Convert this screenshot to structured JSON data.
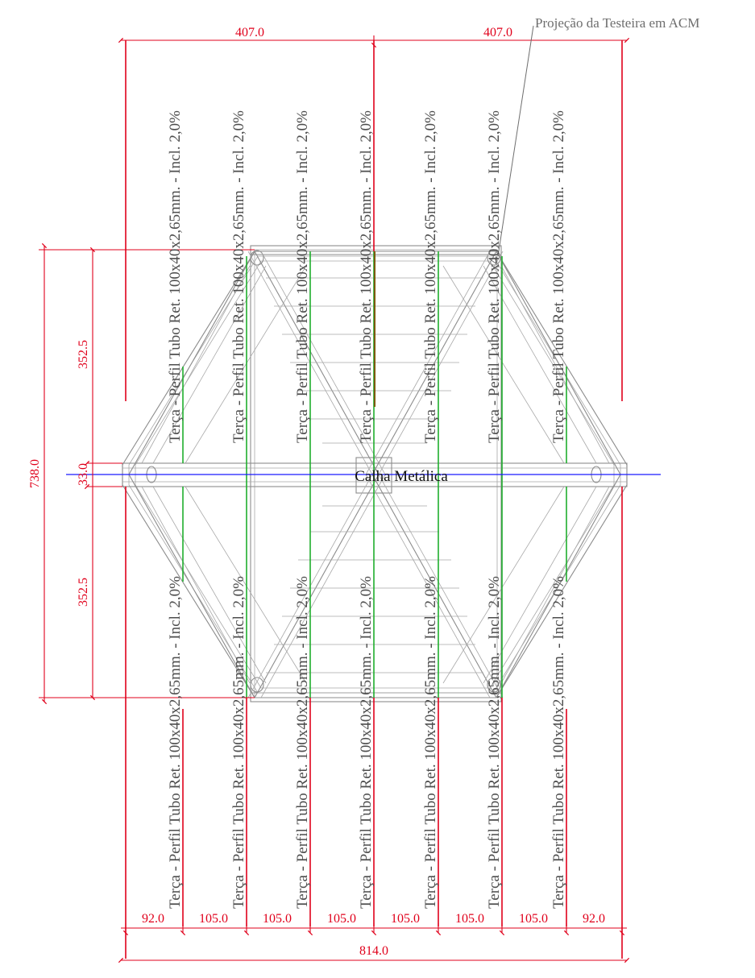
{
  "drawing": {
    "callout": "Projeção da Testeira em ACM",
    "gutter_label": "Calha Metálica",
    "purlin_label": "Terça - Perfil Tubo Ret. 100x40x2,65mm. - Incl. 2,0%",
    "purlin_label_bottom": "Terça - Perfil Tubo Ret. 100x40x2,65mm.",
    "dims_top": [
      "407.0",
      "407.0"
    ],
    "dim_total_height": "738.0",
    "dims_left": [
      "352.5",
      "33.0",
      "352.5"
    ],
    "dims_bottom": [
      "92.0",
      "105.0",
      "105.0",
      "105.0",
      "105.0",
      "105.0",
      "105.0",
      "92.0"
    ],
    "dim_total_width": "814.0",
    "colors": {
      "dimension": "#e0001b",
      "structure": "#8c8c8c",
      "purlin": "#1fae2d",
      "axis": "#1a1aff",
      "callout": "#6e6e6e"
    }
  }
}
